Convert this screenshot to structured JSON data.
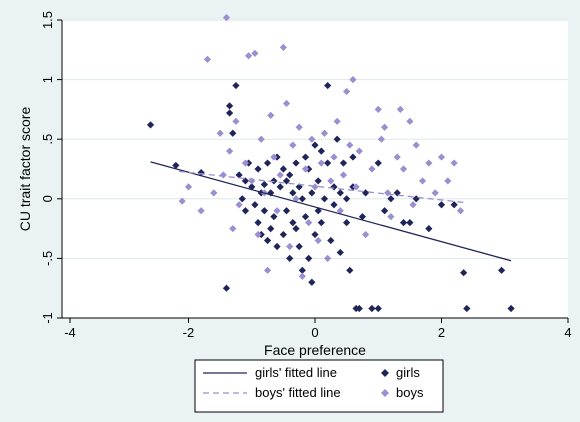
{
  "chart_data": {
    "type": "scatter",
    "xlabel": "Face preference",
    "ylabel": "CU trait factor score",
    "xlim": [
      -4,
      4
    ],
    "ylim": [
      -1,
      1.5
    ],
    "x_ticks": [
      -4,
      -2,
      0,
      2,
      4
    ],
    "x_tick_labels": [
      "-4",
      "-2",
      "0",
      "2",
      "4"
    ],
    "y_ticks": [
      -1,
      -0.5,
      0,
      0.5,
      1,
      1.5
    ],
    "y_tick_labels": [
      "-1",
      "-.5",
      "0",
      ".5",
      "1",
      "1.5"
    ],
    "grid": "horizontal",
    "legend_placement": "bottom",
    "colors": {
      "background": "#eaf2f3",
      "plot_area": "#ffffff",
      "girls": "#1f2559",
      "boys": "#9a8fd0",
      "gridline": "#dde7ea"
    },
    "series": [
      {
        "name": "girls",
        "kind": "scatter",
        "marker": "diamond",
        "color": "#1f2559",
        "x": [
          -2.6,
          -2.2,
          -1.8,
          -1.4,
          -1.35,
          -1.35,
          -1.3,
          -1.25,
          -1.2,
          -1.15,
          -1.1,
          -1.1,
          -1.05,
          -1.0,
          -0.95,
          -0.9,
          -0.9,
          -0.85,
          -0.85,
          -0.8,
          -0.8,
          -0.75,
          -0.75,
          -0.7,
          -0.7,
          -0.65,
          -0.65,
          -0.6,
          -0.6,
          -0.55,
          -0.5,
          -0.5,
          -0.45,
          -0.45,
          -0.4,
          -0.4,
          -0.35,
          -0.35,
          -0.3,
          -0.3,
          -0.25,
          -0.25,
          -0.2,
          -0.2,
          -0.15,
          -0.15,
          -0.1,
          -0.1,
          -0.05,
          -0.05,
          0.0,
          0.0,
          0.05,
          0.05,
          0.1,
          0.1,
          0.15,
          0.2,
          0.2,
          0.25,
          0.3,
          0.3,
          0.35,
          0.4,
          0.4,
          0.45,
          0.5,
          0.5,
          0.55,
          0.6,
          0.6,
          0.65,
          0.7,
          0.75,
          0.8,
          0.9,
          1.0,
          1.0,
          1.1,
          1.2,
          1.3,
          1.4,
          1.5,
          1.6,
          1.8,
          2.0,
          2.2,
          2.35,
          2.4,
          2.95,
          3.1
        ],
        "y": [
          0.62,
          0.28,
          0.22,
          -0.75,
          0.78,
          0.72,
          0.55,
          0.95,
          0.2,
          0.0,
          -0.1,
          0.15,
          0.3,
          0.1,
          -0.05,
          0.25,
          -0.2,
          0.05,
          -0.3,
          0.12,
          -0.1,
          0.3,
          -0.35,
          0.05,
          -0.25,
          0.15,
          -0.15,
          0.35,
          -0.4,
          0.1,
          0.25,
          -0.3,
          -0.1,
          0.15,
          0.2,
          -0.5,
          0.05,
          -0.2,
          0.3,
          -0.25,
          0.1,
          -0.4,
          -0.6,
          0.0,
          0.35,
          -0.15,
          0.25,
          -0.5,
          0.05,
          -0.7,
          0.45,
          -0.3,
          0.15,
          -0.1,
          0.4,
          -0.2,
          0.0,
          0.95,
          0.3,
          -0.35,
          0.1,
          -0.05,
          0.5,
          0.05,
          -0.45,
          0.3,
          0.0,
          -0.2,
          -0.6,
          0.35,
          0.1,
          -0.92,
          -0.92,
          -0.15,
          0.05,
          -0.92,
          -0.92,
          0.3,
          -0.1,
          0.0,
          0.05,
          -0.2,
          -0.2,
          0.0,
          -0.25,
          -0.05,
          -0.05,
          -0.62,
          -0.92,
          -0.6,
          -0.92
        ]
      },
      {
        "name": "boys",
        "kind": "scatter",
        "marker": "diamond",
        "color": "#9a8fd0",
        "x": [
          -2.1,
          -2.0,
          -1.8,
          -1.7,
          -1.6,
          -1.5,
          -1.45,
          -1.4,
          -1.35,
          -1.3,
          -1.25,
          -1.2,
          -1.1,
          -1.05,
          -1.0,
          -0.95,
          -0.9,
          -0.85,
          -0.8,
          -0.75,
          -0.7,
          -0.65,
          -0.6,
          -0.55,
          -0.5,
          -0.45,
          -0.4,
          -0.35,
          -0.3,
          -0.25,
          -0.2,
          -0.15,
          -0.1,
          -0.05,
          0.0,
          0.05,
          0.1,
          0.15,
          0.2,
          0.25,
          0.3,
          0.35,
          0.4,
          0.45,
          0.5,
          0.55,
          0.6,
          0.65,
          0.7,
          0.8,
          0.9,
          1.0,
          1.05,
          1.1,
          1.15,
          1.2,
          1.3,
          1.35,
          1.4,
          1.5,
          1.55,
          1.6,
          1.7,
          1.8,
          1.9,
          2.0,
          2.1,
          2.2,
          2.3
        ],
        "y": [
          -0.02,
          0.1,
          -0.1,
          1.17,
          0.05,
          0.55,
          0.2,
          1.52,
          0.4,
          -0.25,
          0.65,
          -0.05,
          0.3,
          1.2,
          0.15,
          1.22,
          -0.3,
          0.5,
          0.05,
          -0.6,
          0.7,
          0.35,
          -0.1,
          0.2,
          1.27,
          0.8,
          -0.4,
          0.45,
          0.0,
          0.6,
          -0.65,
          0.25,
          -0.2,
          0.5,
          0.1,
          -0.35,
          0.3,
          0.55,
          -0.5,
          0.15,
          0.35,
          0.65,
          -0.1,
          0.2,
          0.9,
          0.45,
          1.0,
          0.1,
          0.4,
          -0.3,
          0.25,
          0.75,
          0.5,
          0.6,
          0.05,
          -0.15,
          0.35,
          0.75,
          0.25,
          0.65,
          -0.05,
          0.45,
          0.15,
          0.3,
          0.05,
          0.35,
          0.15,
          0.3,
          -0.1
        ]
      },
      {
        "name": "girls' fitted line",
        "kind": "line",
        "dash": "solid",
        "color": "#1f2559",
        "x": [
          -2.6,
          3.1
        ],
        "y": [
          0.31,
          -0.52
        ]
      },
      {
        "name": "boys' fitted line",
        "kind": "line",
        "dash": "dashed",
        "color": "#9a8fd0",
        "x": [
          -2.15,
          2.35
        ],
        "y": [
          0.23,
          -0.03
        ]
      }
    ],
    "legend": [
      {
        "label": "girls' fitted line",
        "symbol": "solid-line",
        "color": "#1f2559"
      },
      {
        "label": "girls",
        "symbol": "diamond",
        "color": "#1f2559"
      },
      {
        "label": "boys' fitted line",
        "symbol": "dashed-line",
        "color": "#9a8fd0"
      },
      {
        "label": "boys",
        "symbol": "diamond",
        "color": "#9a8fd0"
      }
    ]
  }
}
